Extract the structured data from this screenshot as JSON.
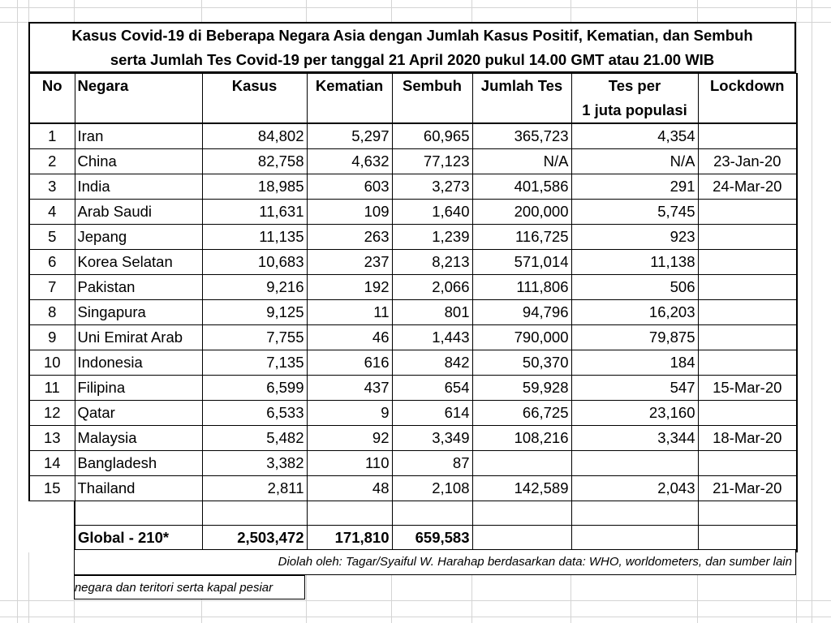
{
  "title": {
    "line1": "Kasus Covid-19 di Beberapa Negara Asia dengan Jumlah Kasus Positif, Kematian, dan Sembuh",
    "line2": "serta Jumlah Tes Covid-19 per tanggal  21 April 2020 pukul 14.00 GMT atau 21.00 WIB"
  },
  "headers": {
    "no": "No",
    "negara": "Negara",
    "kasus": "Kasus",
    "kematian": "Kematian",
    "sembuh": "Sembuh",
    "jumlah_tes": "Jumlah Tes",
    "tes_per_line1": "Tes per",
    "tes_per_line2": "1 juta populasi",
    "lockdown": "Lockdown"
  },
  "rows": [
    {
      "no": "1",
      "negara": "Iran",
      "kasus": "84,802",
      "kematian": "5,297",
      "sembuh": "60,965",
      "jumlah_tes": "365,723",
      "tes_per_juta": "4,354",
      "lockdown": ""
    },
    {
      "no": "2",
      "negara": "China",
      "kasus": "82,758",
      "kematian": "4,632",
      "sembuh": "77,123",
      "jumlah_tes": "N/A",
      "tes_per_juta": "N/A",
      "lockdown": "23-Jan-20"
    },
    {
      "no": "3",
      "negara": "India",
      "kasus": "18,985",
      "kematian": "603",
      "sembuh": "3,273",
      "jumlah_tes": "401,586",
      "tes_per_juta": "291",
      "lockdown": "24-Mar-20"
    },
    {
      "no": "4",
      "negara": "Arab Saudi",
      "kasus": "11,631",
      "kematian": "109",
      "sembuh": "1,640",
      "jumlah_tes": "200,000",
      "tes_per_juta": "5,745",
      "lockdown": ""
    },
    {
      "no": "5",
      "negara": "Jepang",
      "kasus": "11,135",
      "kematian": "263",
      "sembuh": "1,239",
      "jumlah_tes": "116,725",
      "tes_per_juta": "923",
      "lockdown": ""
    },
    {
      "no": "6",
      "negara": "Korea Selatan",
      "kasus": "10,683",
      "kematian": "237",
      "sembuh": "8,213",
      "jumlah_tes": "571,014",
      "tes_per_juta": "11,138",
      "lockdown": ""
    },
    {
      "no": "7",
      "negara": "Pakistan",
      "kasus": "9,216",
      "kematian": "192",
      "sembuh": "2,066",
      "jumlah_tes": "111,806",
      "tes_per_juta": "506",
      "lockdown": ""
    },
    {
      "no": "8",
      "negara": "Singapura",
      "kasus": "9,125",
      "kematian": "11",
      "sembuh": "801",
      "jumlah_tes": "94,796",
      "tes_per_juta": "16,203",
      "lockdown": ""
    },
    {
      "no": "9",
      "negara": "Uni Emirat Arab",
      "kasus": "7,755",
      "kematian": "46",
      "sembuh": "1,443",
      "jumlah_tes": "790,000",
      "tes_per_juta": "79,875",
      "lockdown": ""
    },
    {
      "no": "10",
      "negara": "Indonesia",
      "kasus": "7,135",
      "kematian": "616",
      "sembuh": "842",
      "jumlah_tes": "50,370",
      "tes_per_juta": "184",
      "lockdown": ""
    },
    {
      "no": "11",
      "negara": "Filipina",
      "kasus": "6,599",
      "kematian": "437",
      "sembuh": "654",
      "jumlah_tes": "59,928",
      "tes_per_juta": "547",
      "lockdown": "15-Mar-20"
    },
    {
      "no": "12",
      "negara": "Qatar",
      "kasus": "6,533",
      "kematian": "9",
      "sembuh": "614",
      "jumlah_tes": "66,725",
      "tes_per_juta": "23,160",
      "lockdown": ""
    },
    {
      "no": "13",
      "negara": "Malaysia",
      "kasus": "5,482",
      "kematian": "92",
      "sembuh": "3,349",
      "jumlah_tes": "108,216",
      "tes_per_juta": "3,344",
      "lockdown": "18-Mar-20"
    },
    {
      "no": "14",
      "negara": "Bangladesh",
      "kasus": "3,382",
      "kematian": "110",
      "sembuh": "87",
      "jumlah_tes": "",
      "tes_per_juta": "",
      "lockdown": ""
    },
    {
      "no": "15",
      "negara": "Thailand",
      "kasus": "2,811",
      "kematian": "48",
      "sembuh": "2,108",
      "jumlah_tes": "142,589",
      "tes_per_juta": "2,043",
      "lockdown": "21-Mar-20"
    }
  ],
  "global": {
    "label": "Global -  210*",
    "kasus": "2,503,472",
    "kematian": "171,810",
    "sembuh": "659,583"
  },
  "source": "Diolah oleh: Tagar/Syaiful W. Harahap berdasarkan data: WHO, worldometers, dan sumber lain",
  "footnote": "*negara dan teritori serta kapal pesiar"
}
